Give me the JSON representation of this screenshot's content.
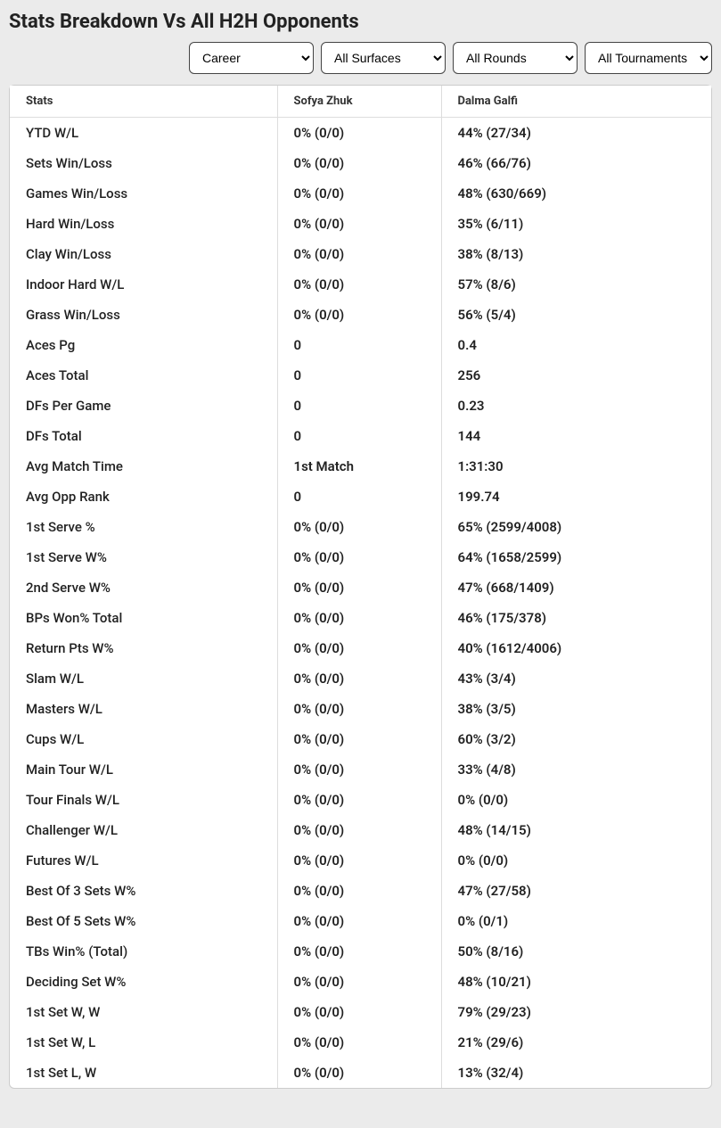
{
  "title": "Stats Breakdown Vs All H2H Opponents",
  "filters": {
    "period": {
      "selected": "Career"
    },
    "surface": {
      "selected": "All Surfaces"
    },
    "round": {
      "selected": "All Rounds"
    },
    "tournament": {
      "selected": "All Tournaments"
    }
  },
  "columns": {
    "stats": "Stats",
    "p1": "Sofya Zhuk",
    "p2": "Dalma Galfi"
  },
  "rows": [
    {
      "stat": "YTD W/L",
      "p1": "0% (0/0)",
      "p2": "44% (27/34)"
    },
    {
      "stat": "Sets Win/Loss",
      "p1": "0% (0/0)",
      "p2": "46% (66/76)"
    },
    {
      "stat": "Games Win/Loss",
      "p1": "0% (0/0)",
      "p2": "48% (630/669)"
    },
    {
      "stat": "Hard Win/Loss",
      "p1": "0% (0/0)",
      "p2": "35% (6/11)"
    },
    {
      "stat": "Clay Win/Loss",
      "p1": "0% (0/0)",
      "p2": "38% (8/13)"
    },
    {
      "stat": "Indoor Hard W/L",
      "p1": "0% (0/0)",
      "p2": "57% (8/6)"
    },
    {
      "stat": "Grass Win/Loss",
      "p1": "0% (0/0)",
      "p2": "56% (5/4)"
    },
    {
      "stat": "Aces Pg",
      "p1": "0",
      "p2": "0.4"
    },
    {
      "stat": "Aces Total",
      "p1": "0",
      "p2": "256"
    },
    {
      "stat": "DFs Per Game",
      "p1": "0",
      "p2": "0.23"
    },
    {
      "stat": "DFs Total",
      "p1": "0",
      "p2": "144"
    },
    {
      "stat": "Avg Match Time",
      "p1": "1st Match",
      "p2": "1:31:30"
    },
    {
      "stat": "Avg Opp Rank",
      "p1": "0",
      "p2": "199.74"
    },
    {
      "stat": "1st Serve %",
      "p1": "0% (0/0)",
      "p2": "65% (2599/4008)"
    },
    {
      "stat": "1st Serve W%",
      "p1": "0% (0/0)",
      "p2": "64% (1658/2599)"
    },
    {
      "stat": "2nd Serve W%",
      "p1": "0% (0/0)",
      "p2": "47% (668/1409)"
    },
    {
      "stat": "BPs Won% Total",
      "p1": "0% (0/0)",
      "p2": "46% (175/378)"
    },
    {
      "stat": "Return Pts W%",
      "p1": "0% (0/0)",
      "p2": "40% (1612/4006)"
    },
    {
      "stat": "Slam W/L",
      "p1": "0% (0/0)",
      "p2": "43% (3/4)"
    },
    {
      "stat": "Masters W/L",
      "p1": "0% (0/0)",
      "p2": "38% (3/5)"
    },
    {
      "stat": "Cups W/L",
      "p1": "0% (0/0)",
      "p2": "60% (3/2)"
    },
    {
      "stat": "Main Tour W/L",
      "p1": "0% (0/0)",
      "p2": "33% (4/8)"
    },
    {
      "stat": "Tour Finals W/L",
      "p1": "0% (0/0)",
      "p2": "0% (0/0)"
    },
    {
      "stat": "Challenger W/L",
      "p1": "0% (0/0)",
      "p2": "48% (14/15)"
    },
    {
      "stat": "Futures W/L",
      "p1": "0% (0/0)",
      "p2": "0% (0/0)"
    },
    {
      "stat": "Best Of 3 Sets W%",
      "p1": "0% (0/0)",
      "p2": "47% (27/58)"
    },
    {
      "stat": "Best Of 5 Sets W%",
      "p1": "0% (0/0)",
      "p2": "0% (0/1)"
    },
    {
      "stat": "TBs Win% (Total)",
      "p1": "0% (0/0)",
      "p2": "50% (8/16)"
    },
    {
      "stat": "Deciding Set W%",
      "p1": "0% (0/0)",
      "p2": "48% (10/21)"
    },
    {
      "stat": "1st Set W, W",
      "p1": "0% (0/0)",
      "p2": "79% (29/23)"
    },
    {
      "stat": "1st Set W, L",
      "p1": "0% (0/0)",
      "p2": "21% (29/6)"
    },
    {
      "stat": "1st Set L, W",
      "p1": "0% (0/0)",
      "p2": "13% (32/4)"
    }
  ]
}
